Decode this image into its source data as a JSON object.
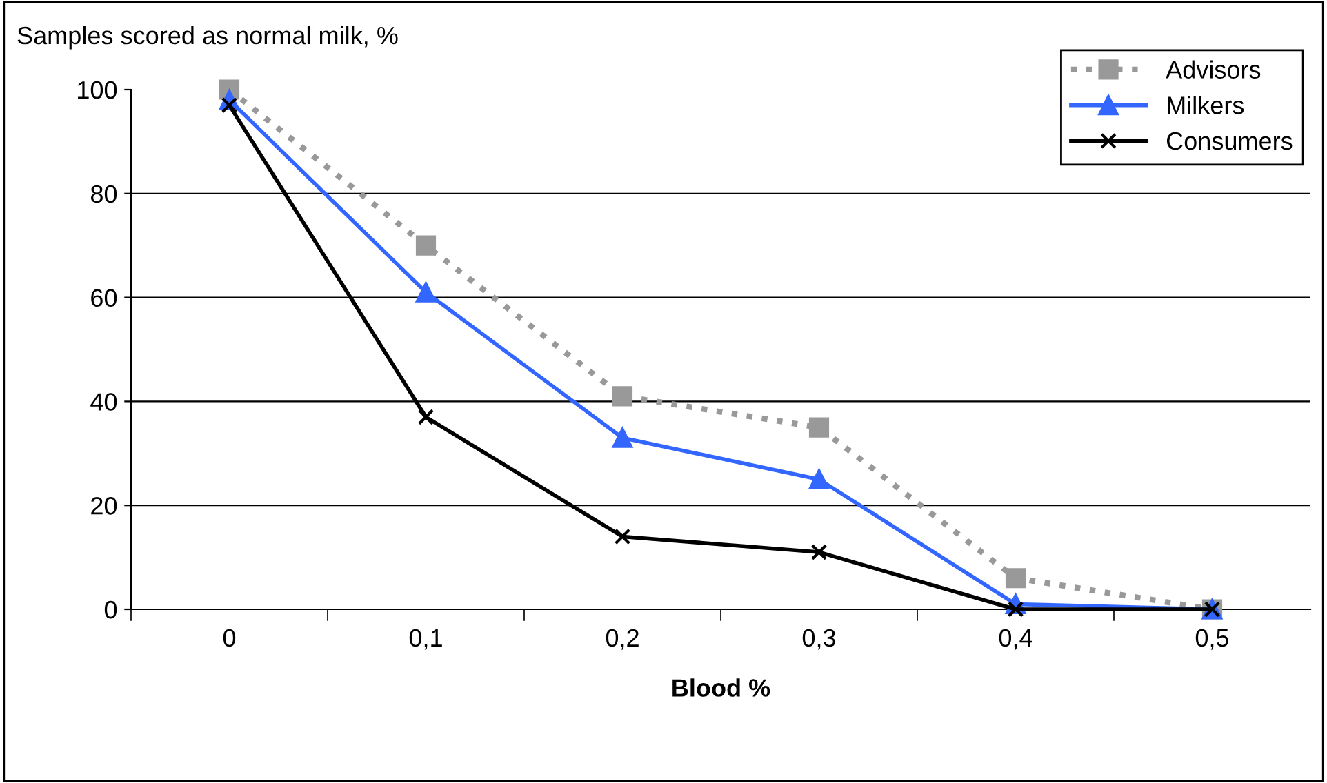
{
  "chart_data": {
    "type": "line",
    "ylabel": "Samples scored as normal milk, %",
    "xlabel": "Blood %",
    "categories": [
      "0",
      "0,1",
      "0,2",
      "0,3",
      "0,4",
      "0,5"
    ],
    "series": [
      {
        "name": "Advisors",
        "color": "#999999",
        "marker": "square",
        "line_style": "dotted",
        "values": [
          100,
          70,
          41,
          35,
          6,
          0
        ]
      },
      {
        "name": "Milkers",
        "color": "#3366ff",
        "marker": "triangle",
        "line_style": "solid",
        "values": [
          98,
          61,
          33,
          25,
          1,
          0
        ]
      },
      {
        "name": "Consumers",
        "color": "#000000",
        "marker": "cross",
        "line_style": "solid",
        "values": [
          97,
          37,
          14,
          11,
          0,
          0
        ]
      }
    ],
    "ylim": [
      0,
      100
    ],
    "yticks": [
      0,
      20,
      40,
      60,
      80,
      100
    ],
    "grid": "y",
    "legend": "top right"
  }
}
